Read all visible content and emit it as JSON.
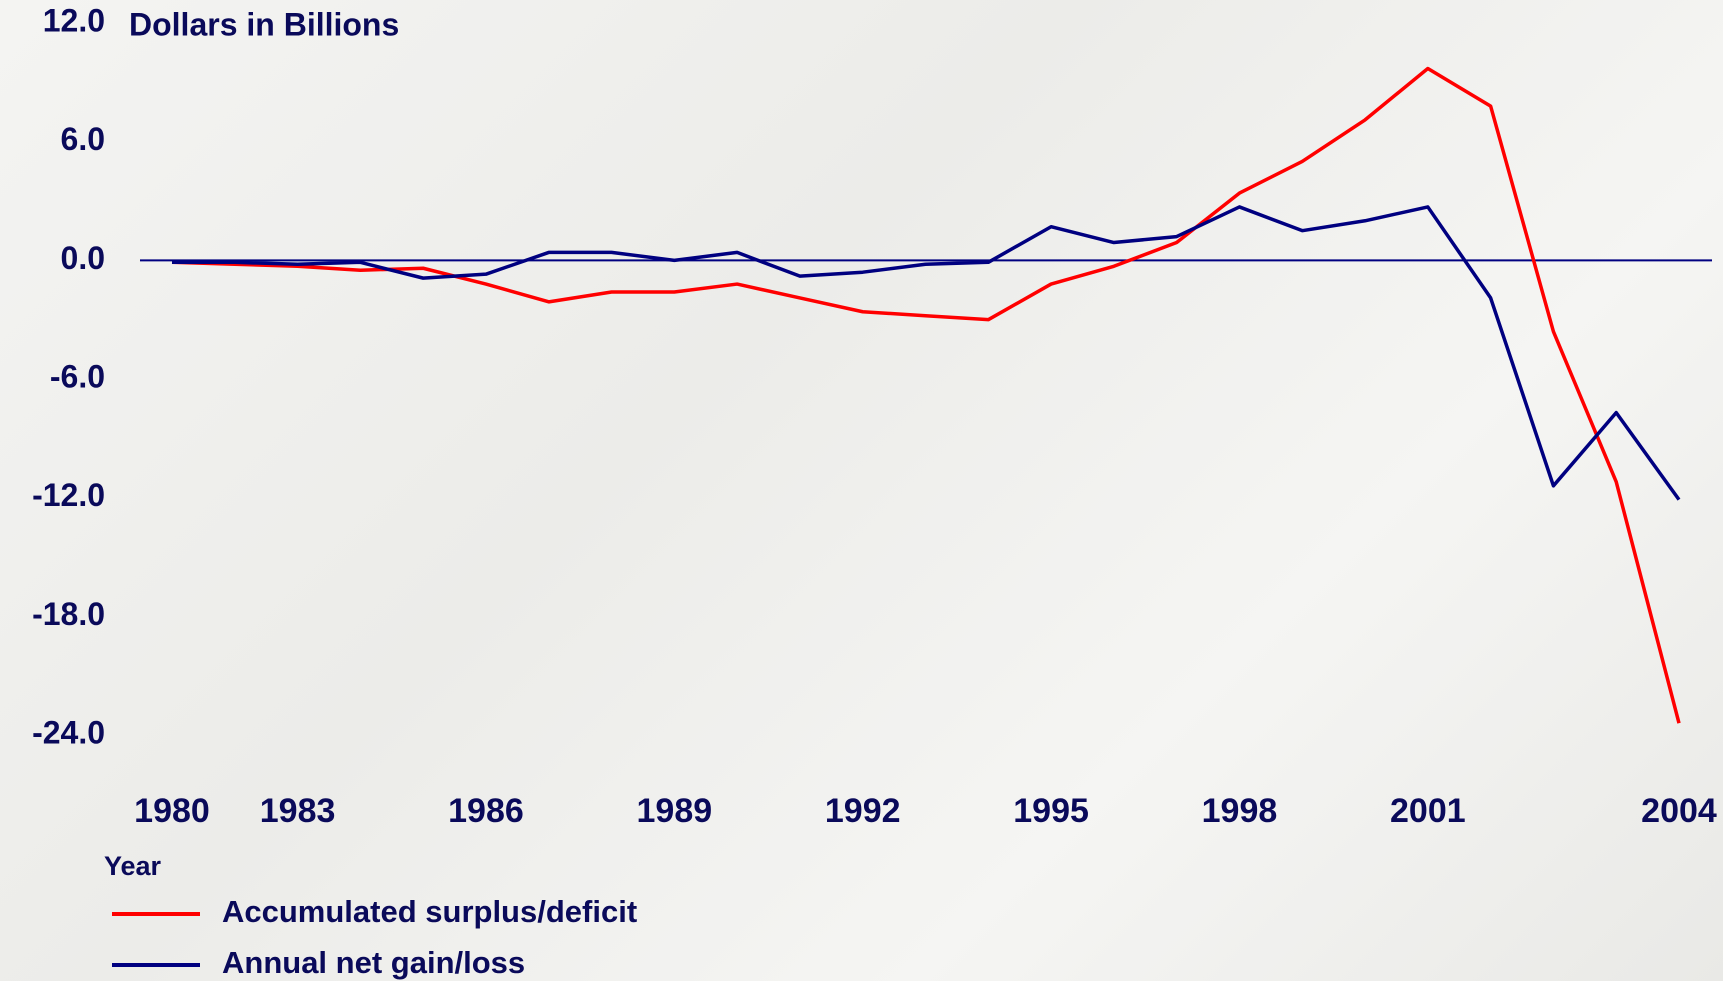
{
  "chart_data": {
    "type": "line",
    "title": "Dollars in Billions",
    "x_label": "Year",
    "categories": [
      "1980",
      null,
      "1983",
      null,
      null,
      "1986",
      null,
      null,
      "1989",
      null,
      null,
      "1992",
      null,
      null,
      "1995",
      null,
      null,
      "1998",
      null,
      null,
      "2001",
      null,
      null,
      null,
      "2004"
    ],
    "series": [
      {
        "name": "Accumulated surplus/deficit",
        "color": "#ff0000",
        "values": [
          -0.1,
          -0.2,
          -0.3,
          -0.5,
          -0.4,
          -1.2,
          -2.1,
          -1.6,
          -1.6,
          -1.2,
          -1.9,
          -2.6,
          -2.8,
          -3.0,
          -1.2,
          -0.3,
          0.9,
          3.4,
          5.0,
          7.1,
          9.7,
          7.8,
          -3.6,
          -11.2,
          -23.4
        ]
      },
      {
        "name": "Annual net gain/loss",
        "color": "#000080",
        "values": [
          -0.1,
          -0.1,
          -0.2,
          -0.1,
          -0.9,
          -0.7,
          0.4,
          0.4,
          0.0,
          0.4,
          -0.8,
          -0.6,
          -0.2,
          -0.1,
          1.7,
          0.9,
          1.2,
          2.7,
          1.5,
          2.0,
          2.7,
          -1.9,
          -11.4,
          -7.7,
          -12.1
        ]
      }
    ],
    "ylim": [
      -24,
      12
    ],
    "yticks": [
      {
        "value": 12,
        "label": "12.0"
      },
      {
        "value": 6,
        "label": "6.0"
      },
      {
        "value": 0,
        "label": "0.0"
      },
      {
        "value": -6,
        "label": "-6.0"
      },
      {
        "value": -12,
        "label": "-12.0"
      },
      {
        "value": -18,
        "label": "-18.0"
      },
      {
        "value": -24,
        "label": "-24.0"
      }
    ],
    "grid": false
  }
}
